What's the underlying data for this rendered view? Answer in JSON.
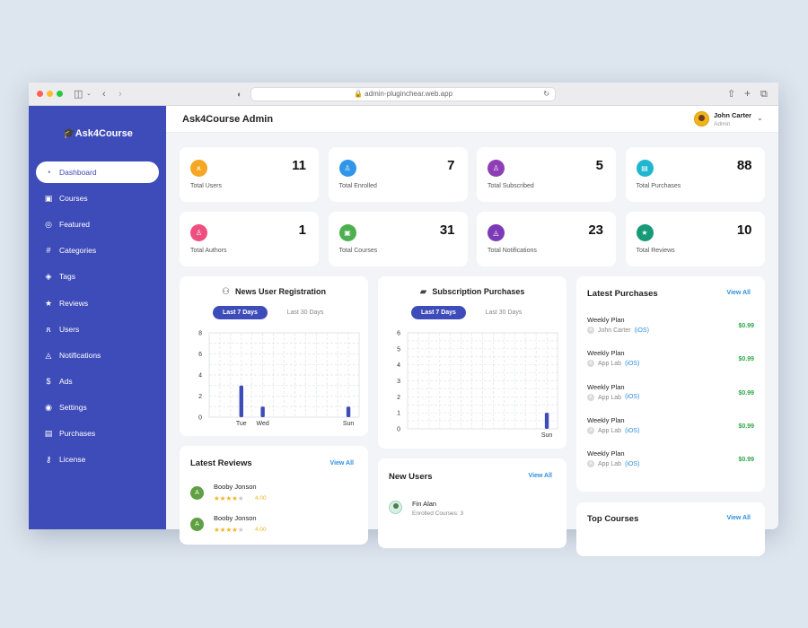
{
  "browser": {
    "url": "admin-pluginchear.web.app"
  },
  "brand": {
    "name": "Ask4Course",
    "logo_glyph": "🎓"
  },
  "header": {
    "title": "Ask4Course Admin",
    "user_name": "John Carter",
    "user_role": "Admin"
  },
  "sidebar": {
    "items": [
      {
        "label": "Dashboard",
        "icon": "◔",
        "active": true
      },
      {
        "label": "Courses",
        "icon": "▣"
      },
      {
        "label": "Featured",
        "icon": "◎"
      },
      {
        "label": "Categories",
        "icon": "#"
      },
      {
        "label": "Tags",
        "icon": "◈"
      },
      {
        "label": "Reviews",
        "icon": "★"
      },
      {
        "label": "Users",
        "icon": "ጸ"
      },
      {
        "label": "Notifications",
        "icon": "◬"
      },
      {
        "label": "Ads",
        "icon": "$"
      },
      {
        "label": "Settings",
        "icon": "◉"
      },
      {
        "label": "Purchases",
        "icon": "▤"
      },
      {
        "label": "License",
        "icon": "⚷"
      }
    ]
  },
  "stats": [
    {
      "label": "Total Users",
      "value": "11",
      "color": "#f5a623",
      "icon": "ጸ"
    },
    {
      "label": "Total Enrolled",
      "value": "7",
      "color": "#2f96e8",
      "icon": "♙"
    },
    {
      "label": "Total Subscribed",
      "value": "5",
      "color": "#8e3fb5",
      "icon": "♙"
    },
    {
      "label": "Total Purchases",
      "value": "88",
      "color": "#1fb6d0",
      "icon": "▤"
    },
    {
      "label": "Total Authors",
      "value": "1",
      "color": "#ee4f7e",
      "icon": "♙"
    },
    {
      "label": "Total Courses",
      "value": "31",
      "color": "#4caf50",
      "icon": "▣"
    },
    {
      "label": "Total Notifications",
      "value": "23",
      "color": "#7c3ab8",
      "icon": "◬"
    },
    {
      "label": "Total Reviews",
      "value": "10",
      "color": "#169a78",
      "icon": "★"
    }
  ],
  "charts": {
    "registration": {
      "title": "News User Registration",
      "icon": "⚇",
      "tab_active": "Last 7 Days",
      "tab_inactive": "Last 30 Days"
    },
    "subscription": {
      "title": "Subscription Purchases",
      "icon": "▰",
      "tab_active": "Last 7 Days",
      "tab_inactive": "Last 30 Days"
    }
  },
  "latest_purchases": {
    "title": "Latest Purchases",
    "view_all": "View All",
    "items": [
      {
        "plan": "Weekly Plan",
        "user": "John Carter",
        "platform": "(iOS)",
        "price": "$0.99"
      },
      {
        "plan": "Weekly Plan",
        "user": "App Lab",
        "platform": "(iOS)",
        "price": "$0.99"
      },
      {
        "plan": "Weekly Plan",
        "user": "App Lab",
        "platform": "(iOS)",
        "price": "$0.99"
      },
      {
        "plan": "Weekly Plan",
        "user": "App Lab",
        "platform": "(iOS)",
        "price": "$0.99"
      },
      {
        "plan": "Weekly Plan",
        "user": "App Lab",
        "platform": "(iOS)",
        "price": "$0.99"
      }
    ]
  },
  "latest_reviews": {
    "title": "Latest Reviews",
    "view_all": "View All",
    "items": [
      {
        "initial": "A",
        "name": "Booby Jonson",
        "stars": 4,
        "rating": "4.00"
      },
      {
        "initial": "A",
        "name": "Booby Jonson",
        "stars": 4,
        "rating": "4.00"
      }
    ]
  },
  "new_users": {
    "title": "New Users",
    "view_all": "View All",
    "items": [
      {
        "name": "Fin Alan",
        "detail": "Enrolled Courses: 3"
      }
    ]
  },
  "top_courses": {
    "title": "Top Courses",
    "view_all": "View All"
  },
  "chart_data": [
    {
      "type": "bar",
      "title": "News User Registration",
      "categories": [
        "Tue",
        "Wed",
        "Sun"
      ],
      "values": [
        3,
        1,
        1
      ],
      "ylim": [
        0,
        8
      ],
      "yticks": [
        0,
        2,
        4,
        6,
        8
      ],
      "grid": true,
      "color": "#3e4cb9"
    },
    {
      "type": "bar",
      "title": "Subscription Purchases",
      "categories": [
        "Sun"
      ],
      "values": [
        1
      ],
      "ylim": [
        0,
        6
      ],
      "yticks": [
        0,
        1,
        2,
        3,
        4,
        5,
        6
      ],
      "grid": true,
      "color": "#3e4cb9"
    }
  ]
}
